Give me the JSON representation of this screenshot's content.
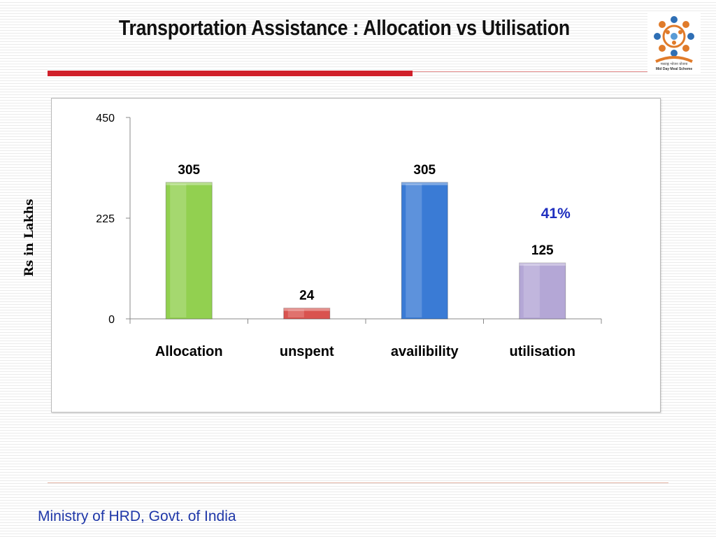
{
  "slide": {
    "title": "Transportation Assistance : Allocation vs Utilisation",
    "footer": "Ministry of HRD, Govt. of India",
    "logo_line1": "मध्याह्न भोजन योजना",
    "logo_line2": "Mid Day Meal Scheme"
  },
  "colors": {
    "title": "#111111",
    "accent_red": "#d0202a",
    "footer_text": "#1f37a8",
    "percent_text": "#1f2fbf",
    "bar_green": "#92d050",
    "bar_red": "#d9534f",
    "bar_blue": "#3a7bd5",
    "bar_lavender": "#b4a7d6"
  },
  "chart_data": {
    "type": "bar",
    "title": "",
    "xlabel": "",
    "ylabel": "Rs in Lakhs",
    "categories": [
      "Allocation",
      "unspent",
      "availibility",
      "utilisation"
    ],
    "values": [
      305,
      24,
      305,
      125
    ],
    "data_labels": [
      "305",
      "24",
      "305",
      "125"
    ],
    "bar_colors": [
      "#92d050",
      "#d9534f",
      "#3a7bd5",
      "#b4a7d6"
    ],
    "ylim": [
      0,
      450
    ],
    "yticks": [
      "0",
      "225",
      "450"
    ],
    "grid": false,
    "legend": "none",
    "annotations": [
      {
        "text": "41%",
        "category": "utilisation"
      }
    ]
  }
}
